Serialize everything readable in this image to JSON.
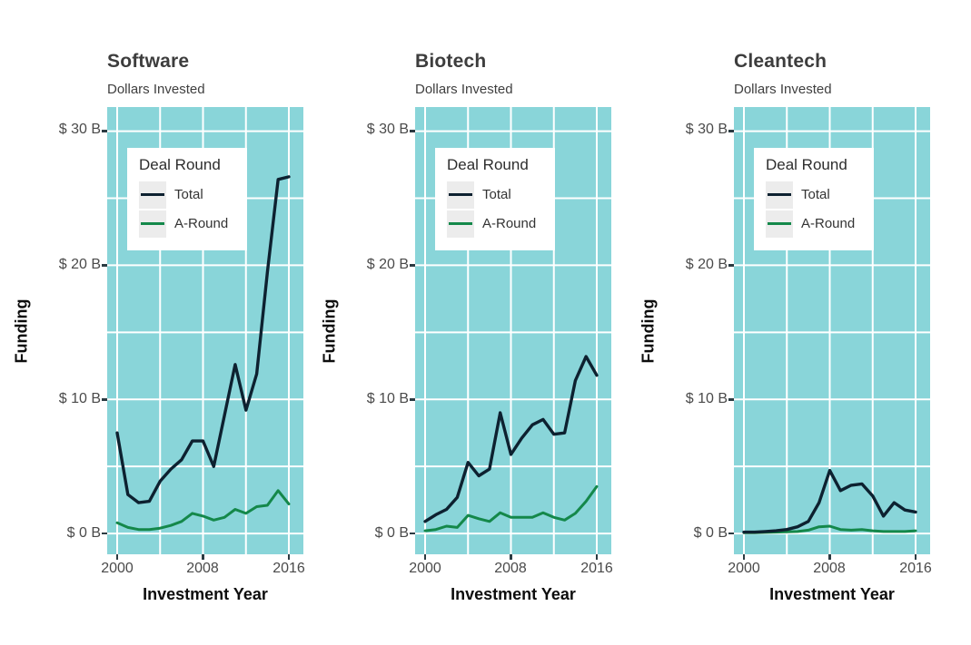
{
  "page": {
    "background": "#ffffff"
  },
  "colors": {
    "panel_bg": "#89d5d9",
    "grid": "#ffffff",
    "total_line": "#0d2130",
    "a_round_line": "#14884a",
    "legend_key_bg": "#ececec",
    "legend_bg": "#ffffff",
    "title_text": "#3d3d3d",
    "tick_text": "#4a4a4a",
    "axis_title_text": "#0d0d0d",
    "tick_mark": "#2b3b42"
  },
  "legend": {
    "title": "Deal Round",
    "entries": [
      {
        "label": "Total",
        "series": "Total"
      },
      {
        "label": "A-Round",
        "series": "A-Round"
      }
    ]
  },
  "axes": {
    "y_title": "Funding",
    "x_title": "Investment Year",
    "y_tick_labels": [
      "$ 30 B",
      "$ 20 B",
      "$ 10 B",
      "$ 0 B"
    ],
    "y_tick_values": [
      30,
      20,
      10,
      0
    ],
    "x_tick_labels": [
      "2000",
      "2008",
      "2016"
    ],
    "x_tick_values": [
      2000,
      2008,
      2016
    ],
    "grid_y_values": [
      0,
      5,
      10,
      15,
      20,
      25,
      30
    ],
    "grid_x_years": [
      2000,
      2004,
      2008,
      2012,
      2016
    ]
  },
  "chart_data": [
    {
      "type": "line",
      "title": "Software",
      "subtitle": "Dollars Invested",
      "xlabel": "Investment Year",
      "ylabel": "Funding",
      "ylim": [
        0,
        30
      ],
      "y_unit": "billions USD",
      "grid": true,
      "legend_position": "top-left",
      "x": [
        2000,
        2001,
        2002,
        2003,
        2004,
        2005,
        2006,
        2007,
        2008,
        2009,
        2010,
        2011,
        2012,
        2013,
        2014,
        2015,
        2016
      ],
      "series": [
        {
          "name": "Total",
          "color": "#0d2130",
          "width": 3.4,
          "values": [
            7.5,
            2.9,
            2.3,
            2.4,
            3.9,
            4.8,
            5.5,
            6.9,
            6.9,
            5.0,
            8.8,
            12.6,
            9.2,
            11.9,
            19.5,
            26.4,
            26.6
          ]
        },
        {
          "name": "A-Round",
          "color": "#14884a",
          "width": 3.0,
          "values": [
            0.8,
            0.45,
            0.3,
            0.3,
            0.4,
            0.6,
            0.9,
            1.5,
            1.3,
            1.0,
            1.2,
            1.8,
            1.5,
            2.0,
            2.1,
            3.2,
            2.2
          ]
        }
      ]
    },
    {
      "type": "line",
      "title": "Biotech",
      "subtitle": "Dollars Invested",
      "xlabel": "Investment Year",
      "ylabel": "Funding",
      "ylim": [
        0,
        30
      ],
      "y_unit": "billions USD",
      "grid": true,
      "legend_position": "top-left",
      "x": [
        2000,
        2001,
        2002,
        2003,
        2004,
        2005,
        2006,
        2007,
        2008,
        2009,
        2010,
        2011,
        2012,
        2013,
        2014,
        2015,
        2016
      ],
      "series": [
        {
          "name": "Total",
          "color": "#0d2130",
          "width": 3.4,
          "values": [
            0.9,
            1.4,
            1.8,
            2.7,
            5.3,
            4.3,
            4.8,
            9.0,
            5.9,
            7.1,
            8.1,
            8.5,
            7.4,
            7.5,
            11.4,
            13.2,
            11.8
          ]
        },
        {
          "name": "A-Round",
          "color": "#14884a",
          "width": 3.0,
          "values": [
            0.2,
            0.3,
            0.55,
            0.45,
            1.35,
            1.1,
            0.9,
            1.55,
            1.2,
            1.2,
            1.2,
            1.55,
            1.2,
            1.0,
            1.5,
            2.4,
            3.5
          ]
        }
      ]
    },
    {
      "type": "line",
      "title": "Cleantech",
      "subtitle": "Dollars Invested",
      "xlabel": "Investment Year",
      "ylabel": "Funding",
      "ylim": [
        0,
        30
      ],
      "y_unit": "billions USD",
      "grid": true,
      "legend_position": "top-left",
      "x": [
        2000,
        2001,
        2002,
        2003,
        2004,
        2005,
        2006,
        2007,
        2008,
        2009,
        2010,
        2011,
        2012,
        2013,
        2014,
        2015,
        2016
      ],
      "series": [
        {
          "name": "Total",
          "color": "#0d2130",
          "width": 3.4,
          "values": [
            0.1,
            0.1,
            0.15,
            0.2,
            0.3,
            0.5,
            0.9,
            2.3,
            4.7,
            3.2,
            3.6,
            3.7,
            2.8,
            1.3,
            2.3,
            1.75,
            1.6
          ]
        },
        {
          "name": "A-Round",
          "color": "#14884a",
          "width": 3.0,
          "values": [
            0.05,
            0.05,
            0.08,
            0.1,
            0.12,
            0.15,
            0.25,
            0.5,
            0.55,
            0.3,
            0.25,
            0.3,
            0.2,
            0.15,
            0.15,
            0.15,
            0.2
          ]
        }
      ]
    }
  ]
}
